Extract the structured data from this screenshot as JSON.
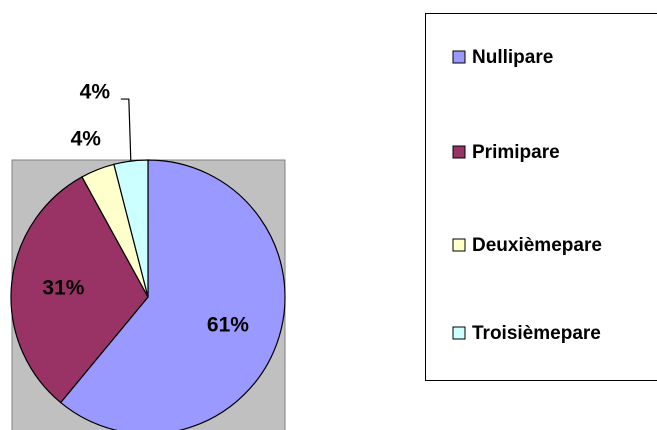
{
  "chart_data": {
    "type": "pie",
    "categories": [
      "Nullipare",
      "Primipare",
      "Deuxièmepare",
      "Troisièmepare"
    ],
    "values": [
      61,
      31,
      4,
      4
    ],
    "value_labels": [
      "61%",
      "31%",
      "4%",
      "4%"
    ],
    "colors": [
      "#9999ff",
      "#993366",
      "#ffffcc",
      "#ccffff"
    ],
    "legend": "right"
  }
}
